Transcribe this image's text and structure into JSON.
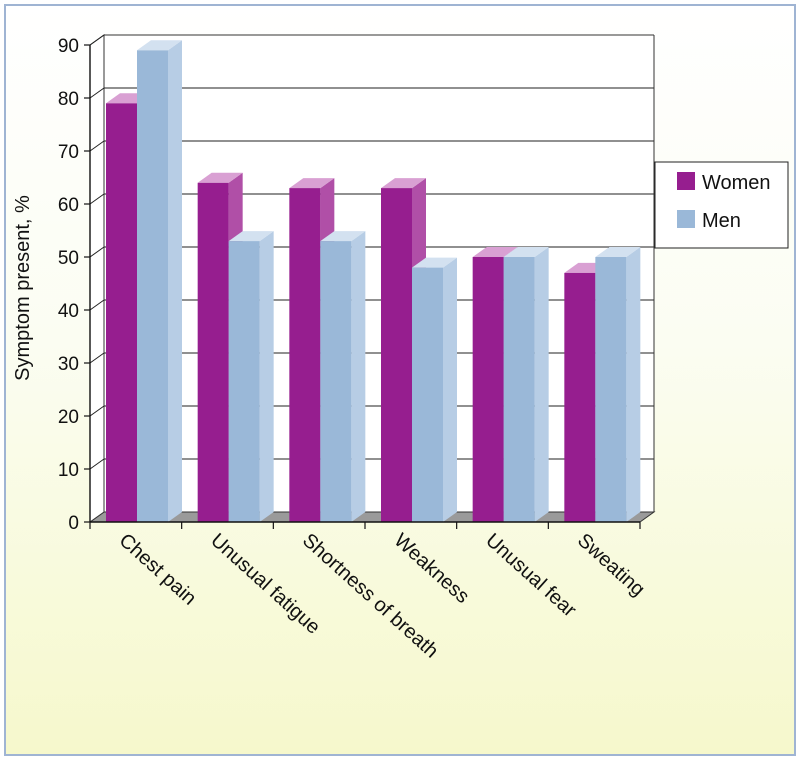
{
  "chart_data": {
    "type": "bar",
    "three_d": true,
    "categories": [
      "Chest pain",
      "Unusual fatigue",
      "Shortness of breath",
      "Weakness",
      "Unusual fear",
      "Sweating"
    ],
    "series": [
      {
        "name": "Women",
        "values": [
          79,
          64,
          63,
          63,
          50,
          47
        ]
      },
      {
        "name": "Men",
        "values": [
          89,
          53,
          53,
          48,
          50,
          50
        ]
      }
    ],
    "title": "",
    "xlabel": "",
    "ylabel": "Symptom present, %",
    "ylim": [
      0,
      90
    ],
    "yticks": [
      0,
      10,
      20,
      30,
      40,
      50,
      60,
      70,
      80,
      90
    ],
    "grid": true,
    "legend_position": "right",
    "colors": {
      "women": "#961e8f",
      "women_side": "#b04fa7",
      "women_top": "#d9a0d3",
      "men": "#9ab8d8",
      "men_side": "#b7cde5",
      "men_top": "#d3e1f0",
      "floor": "#9a9a9a",
      "grid": "#222222",
      "frame": "#9fb4d3"
    }
  }
}
